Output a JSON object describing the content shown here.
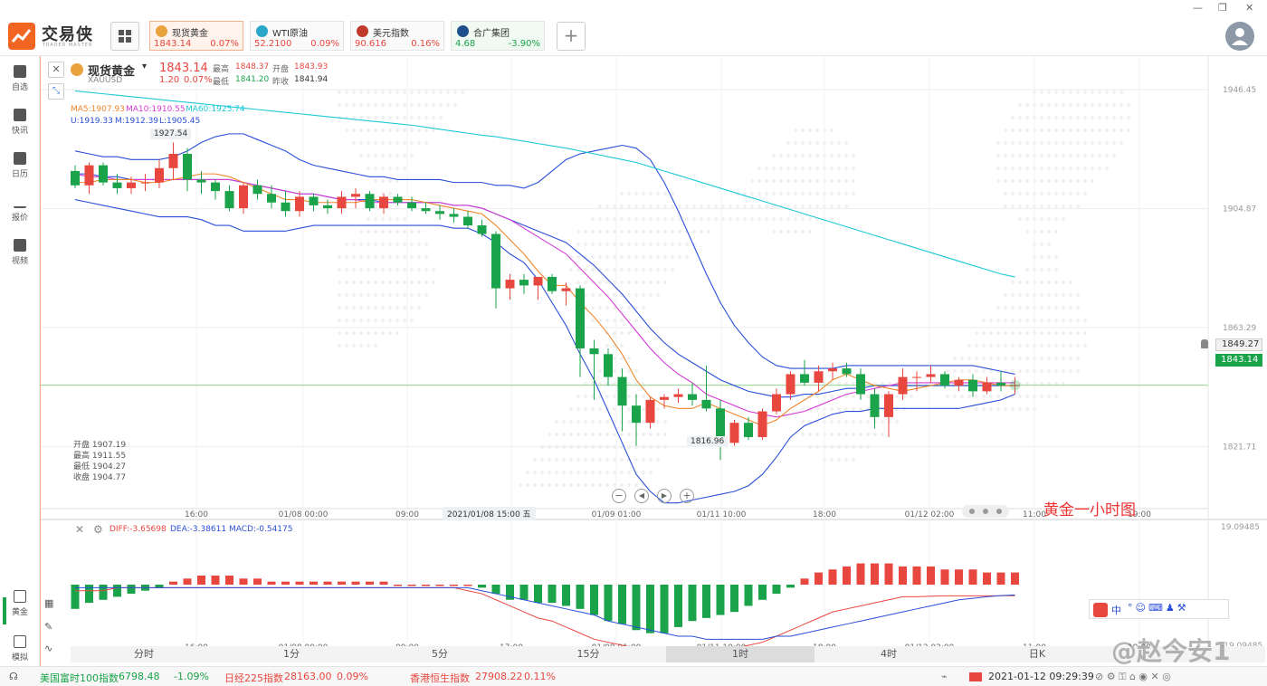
{
  "app": {
    "name": "交易侠",
    "subtitle": "TRADER MASTER"
  },
  "tickers": [
    {
      "name": "现货黄金",
      "price": "1843.14",
      "change": "0.07%",
      "color": "#e8a33c",
      "active": true
    },
    {
      "name": "WTI原油",
      "price": "52.2100",
      "change": "0.09%",
      "color": "#2aa6c8",
      "active": false
    },
    {
      "name": "美元指数",
      "price": "90.616",
      "change": "0.16%",
      "color": "#c0392b",
      "active": false
    },
    {
      "name": "合广集团",
      "price": "4.68",
      "change": "-3.90%",
      "color": "#1f4f8c",
      "active": false
    }
  ],
  "sidebar": [
    {
      "label": "自选"
    },
    {
      "label": "快讯"
    },
    {
      "label": "日历"
    },
    {
      "label": "报价"
    },
    {
      "label": "视频"
    }
  ],
  "sidebar_bottom": [
    {
      "label": "黄金"
    },
    {
      "label": "模拟"
    }
  ],
  "symbol": {
    "name": "现货黄金",
    "code": "XAUUSD",
    "price": "1843.14",
    "change": "1.20",
    "change_pct": "0.07%",
    "high_label": "最高",
    "high": "1848.37",
    "open_label": "开盘",
    "open": "1843.93",
    "low_label": "最低",
    "low": "1841.20",
    "prev_label": "昨收",
    "prev": "1841.94"
  },
  "ma": {
    "ma5": "MA5:1907.93",
    "ma10": "MA10:1910.55",
    "ma60": "MA60:1925.74"
  },
  "boll": {
    "u": "U:1919.33",
    "m": "M:1912.39",
    "l": "L:1905.45"
  },
  "ohlc_box": [
    "开盘 1907.19",
    "最高 1911.55",
    "最低 1904.27",
    "收盘 1904.77"
  ],
  "macd": {
    "diff": "DIFF:-3.65698",
    "dea": "DEA:-3.38611",
    "macd": "MACD:-0.54175"
  },
  "annotation": "黄金一小时图",
  "crosshair_time": "2021/01/08 15:00 五",
  "labels": {
    "peak": "1927.54",
    "trough": "1816.96",
    "alert": "1849.27",
    "last": "1843.14"
  },
  "timeframes": [
    "分时",
    "1分",
    "5分",
    "15分",
    "1时",
    "4时",
    "日K"
  ],
  "active_timeframe": "1时",
  "statusbar": {
    "items": [
      {
        "name": "美国富时100指数",
        "price": "6798.48",
        "change": "-1.09%",
        "dir": "down"
      },
      {
        "name": "日经225指数",
        "price": "28163.00",
        "change": "0.09%",
        "dir": "up"
      },
      {
        "name": "香港恒生指数",
        "price": "27908.22",
        "change": "0.11%",
        "dir": "up"
      }
    ],
    "datetime": "2021-01-12 09:29:39"
  },
  "watermark": "@赵今安1",
  "ime_label": "中",
  "chart_data": {
    "type": "candlestick",
    "price_axis": [
      "1946.45",
      "1904.87",
      "1863.29",
      "1821.71"
    ],
    "price_range": [
      1800,
      1955
    ],
    "macd_axis": [
      "19.09485",
      "-19.09485"
    ],
    "macd_range": [
      -19.09485,
      19.09485
    ],
    "time_axis": [
      "16:00",
      "01/08 00:00",
      "09:00",
      "17:00",
      "01/09 01:00",
      "01/11 10:00",
      "18:00",
      "01/12 02:00",
      "11:00",
      "19:00"
    ],
    "candles": [
      [
        1918,
        1920,
        1912,
        1913
      ],
      [
        1913,
        1921,
        1910,
        1920
      ],
      [
        1920,
        1921,
        1913,
        1914
      ],
      [
        1914,
        1917,
        1910,
        1912
      ],
      [
        1912,
        1916,
        1910,
        1914
      ],
      [
        1914,
        1917,
        1911,
        1914
      ],
      [
        1914,
        1922,
        1912,
        1919
      ],
      [
        1919,
        1928,
        1915,
        1924
      ],
      [
        1924,
        1926,
        1911,
        1915
      ],
      [
        1915,
        1918,
        1910,
        1914
      ],
      [
        1914,
        1915,
        1908,
        1911
      ],
      [
        1911,
        1913,
        1904,
        1905
      ],
      [
        1905,
        1914,
        1903,
        1913
      ],
      [
        1913,
        1915,
        1908,
        1910
      ],
      [
        1910,
        1913,
        1905,
        1907
      ],
      [
        1907,
        1911,
        1902,
        1904
      ],
      [
        1904,
        1911,
        1902,
        1909
      ],
      [
        1909,
        1910,
        1904,
        1906
      ],
      [
        1906,
        1908,
        1903,
        1905
      ],
      [
        1905,
        1911,
        1903,
        1909
      ],
      [
        1909,
        1912,
        1905,
        1910
      ],
      [
        1910,
        1911,
        1904,
        1905
      ],
      [
        1905,
        1910,
        1903,
        1909
      ],
      [
        1909,
        1910,
        1906,
        1907
      ],
      [
        1907,
        1909,
        1904,
        1905
      ],
      [
        1905,
        1907,
        1903,
        1904
      ],
      [
        1904,
        1906,
        1901,
        1903
      ],
      [
        1903,
        1905,
        1900,
        1902
      ],
      [
        1902,
        1904,
        1898,
        1899
      ],
      [
        1899,
        1901,
        1895,
        1896
      ],
      [
        1896,
        1897,
        1870,
        1877
      ],
      [
        1877,
        1882,
        1873,
        1880
      ],
      [
        1880,
        1882,
        1875,
        1878
      ],
      [
        1878,
        1881,
        1873,
        1881
      ],
      [
        1881,
        1882,
        1875,
        1876
      ],
      [
        1876,
        1879,
        1871,
        1877
      ],
      [
        1877,
        1878,
        1846,
        1856
      ],
      [
        1856,
        1859,
        1838,
        1854
      ],
      [
        1854,
        1856,
        1843,
        1846
      ],
      [
        1846,
        1849,
        1827,
        1836
      ],
      [
        1836,
        1840,
        1822,
        1830
      ],
      [
        1830,
        1839,
        1828,
        1838
      ],
      [
        1838,
        1840,
        1835,
        1839
      ],
      [
        1839,
        1842,
        1837,
        1840
      ],
      [
        1840,
        1844,
        1836,
        1838
      ],
      [
        1838,
        1850,
        1834,
        1835
      ],
      [
        1835,
        1838,
        1817,
        1823
      ],
      [
        1823,
        1831,
        1822,
        1830
      ],
      [
        1830,
        1832,
        1824,
        1825
      ],
      [
        1825,
        1835,
        1824,
        1834
      ],
      [
        1834,
        1842,
        1833,
        1840
      ],
      [
        1840,
        1848,
        1838,
        1847
      ],
      [
        1847,
        1852,
        1843,
        1844
      ],
      [
        1844,
        1850,
        1841,
        1848
      ],
      [
        1848,
        1851,
        1845,
        1849
      ],
      [
        1849,
        1851,
        1846,
        1847
      ],
      [
        1847,
        1849,
        1838,
        1840
      ],
      [
        1840,
        1842,
        1828,
        1832
      ],
      [
        1832,
        1841,
        1825,
        1840
      ],
      [
        1840,
        1849,
        1838,
        1846
      ],
      [
        1846,
        1848,
        1841,
        1846
      ],
      [
        1846,
        1850,
        1844,
        1847
      ],
      [
        1847,
        1848,
        1842,
        1843
      ],
      [
        1843,
        1846,
        1841,
        1845
      ],
      [
        1845,
        1847,
        1839,
        1841
      ],
      [
        1841,
        1846,
        1840,
        1844
      ],
      [
        1844,
        1848,
        1841,
        1843
      ],
      [
        1843,
        1846,
        1840,
        1843.14
      ]
    ],
    "ma5": [
      1914,
      1914,
      1915,
      1915,
      1915,
      1914,
      1914,
      1915,
      1916,
      1917,
      1917,
      1916,
      1914,
      1912,
      1910,
      1908,
      1908,
      1907,
      1907,
      1907,
      1907,
      1908,
      1908,
      1908,
      1908,
      1907,
      1906,
      1905,
      1904,
      1903,
      1899,
      1894,
      1889,
      1883,
      1878,
      1878,
      1872,
      1867,
      1861,
      1854,
      1845,
      1839,
      1836,
      1835,
      1835,
      1837,
      1835,
      1833,
      1831,
      1829,
      1831,
      1835,
      1838,
      1841,
      1845,
      1847,
      1845,
      1843,
      1842,
      1841,
      1842,
      1843,
      1844,
      1845,
      1845,
      1844,
      1843,
      1843
    ],
    "ma10": [
      1917,
      1916,
      1916,
      1915,
      1915,
      1915,
      1915,
      1915,
      1915,
      1915,
      1915,
      1915,
      1914,
      1913,
      1912,
      1911,
      1910,
      1910,
      1909,
      1908,
      1908,
      1907,
      1907,
      1907,
      1907,
      1907,
      1907,
      1906,
      1906,
      1905,
      1903,
      1901,
      1898,
      1895,
      1892,
      1889,
      1884,
      1879,
      1874,
      1868,
      1862,
      1856,
      1851,
      1847,
      1844,
      1840,
      1838,
      1836,
      1834,
      1833,
      1832,
      1833,
      1834,
      1836,
      1838,
      1840,
      1841,
      1842,
      1843,
      1844,
      1844,
      1844,
      1844,
      1844,
      1844,
      1844,
      1844,
      1844
    ],
    "ma60": [
      1946,
      1945.5,
      1945,
      1944.5,
      1944,
      1943.5,
      1943,
      1942.5,
      1942,
      1941.5,
      1941,
      1940.5,
      1940,
      1939.5,
      1939,
      1938.5,
      1938,
      1937.5,
      1937,
      1936.5,
      1936,
      1935.5,
      1935,
      1934.5,
      1934,
      1933.3,
      1932.6,
      1931.9,
      1931.2,
      1930.5,
      1930,
      1929.2,
      1928.4,
      1927.6,
      1926.8,
      1926,
      1925,
      1924,
      1923,
      1922,
      1921,
      1919.5,
      1918,
      1916.5,
      1915,
      1913.5,
      1912,
      1910.5,
      1909,
      1907.5,
      1906,
      1904.5,
      1903,
      1901.5,
      1900,
      1898.5,
      1897,
      1895.5,
      1894,
      1892.5,
      1891,
      1889.5,
      1888,
      1886.5,
      1885,
      1883.5,
      1882,
      1881
    ],
    "boll_upper": [
      1925,
      1924,
      1923,
      1923,
      1922,
      1922,
      1922,
      1923,
      1925,
      1928,
      1930,
      1931,
      1931,
      1929,
      1927,
      1925,
      1922,
      1920,
      1919,
      1918,
      1917,
      1916,
      1916,
      1915,
      1915,
      1915,
      1915,
      1914,
      1914,
      1914,
      1913,
      1913,
      1912,
      1914,
      1918,
      1922,
      1924,
      1925,
      1926,
      1927,
      1926,
      1922,
      1914,
      1904,
      1893,
      1882,
      1872,
      1864,
      1858,
      1853,
      1850,
      1849,
      1849,
      1849,
      1849,
      1850,
      1850,
      1850,
      1850,
      1850,
      1850,
      1850,
      1850,
      1850,
      1850,
      1849,
      1848,
      1847
    ],
    "boll_mid": [
      1917,
      1917,
      1916,
      1916,
      1915,
      1915,
      1915,
      1915,
      1915,
      1915,
      1915,
      1915,
      1914,
      1913,
      1912,
      1911,
      1910,
      1910,
      1909,
      1908,
      1908,
      1908,
      1907,
      1907,
      1907,
      1907,
      1907,
      1906,
      1906,
      1905,
      1903,
      1901,
      1899,
      1897,
      1895,
      1893,
      1889,
      1885,
      1880,
      1875,
      1869,
      1863,
      1858,
      1854,
      1851,
      1848,
      1845,
      1843,
      1841,
      1840,
      1839,
      1839,
      1840,
      1840,
      1841,
      1842,
      1842,
      1843,
      1843,
      1843,
      1843,
      1843,
      1843,
      1843,
      1843,
      1843,
      1843,
      1843
    ],
    "boll_lower": [
      1908,
      1907,
      1906,
      1905,
      1904,
      1903,
      1902,
      1902,
      1902,
      1901,
      1899,
      1899,
      1897,
      1897,
      1897,
      1897,
      1898,
      1899,
      1899,
      1899,
      1899,
      1899,
      1899,
      1899,
      1899,
      1899,
      1899,
      1898,
      1898,
      1896,
      1893,
      1889,
      1886,
      1880,
      1872,
      1864,
      1854,
      1845,
      1834,
      1823,
      1812,
      1806,
      1802,
      1802,
      1803,
      1804,
      1805,
      1806,
      1808,
      1812,
      1818,
      1825,
      1829,
      1831,
      1833,
      1834,
      1834,
      1835,
      1835,
      1835,
      1835,
      1835,
      1835,
      1835,
      1836,
      1837,
      1838,
      1840
    ],
    "macd_hist": [
      -8,
      -6,
      -5,
      -4,
      -3,
      -2,
      -1,
      1,
      2,
      3,
      3,
      3,
      2,
      2,
      1,
      1,
      1,
      1,
      1,
      1,
      1,
      1,
      1,
      0,
      0,
      0,
      0,
      0,
      0,
      -1,
      -3,
      -5,
      -5,
      -6,
      -6,
      -7,
      -8,
      -10,
      -12,
      -13,
      -15,
      -16,
      -16,
      -14,
      -12,
      -11,
      -10,
      -9,
      -7,
      -5,
      -3,
      -1,
      2,
      4,
      5,
      6,
      7,
      7,
      7,
      6,
      6,
      6,
      5,
      5,
      5,
      4,
      4,
      4
    ],
    "macd_diff": [
      -2,
      -2,
      -2,
      -1,
      -1,
      -1,
      -1,
      -1,
      -1,
      -1,
      -1,
      -1,
      -1,
      -1,
      -1,
      -1,
      -1,
      -1,
      -1,
      -1,
      -1,
      -1,
      -1,
      -1,
      -1,
      -1,
      -1,
      -1,
      -2,
      -3,
      -5,
      -7,
      -9,
      -11,
      -12,
      -14,
      -16,
      -18,
      -19,
      -20,
      -21,
      -21,
      -21,
      -21,
      -21,
      -21,
      -21,
      -21,
      -20,
      -19,
      -17,
      -15,
      -13,
      -11,
      -9,
      -8,
      -7,
      -6,
      -5,
      -4,
      -4,
      -3.8,
      -3.7,
      -3.7,
      -3.7,
      -3.7,
      -3.66,
      -3.66
    ],
    "macd_dea": [
      -1,
      -1,
      -1,
      -1,
      -1,
      -1,
      -1,
      -1,
      -1,
      -1,
      -1,
      -1,
      -1,
      -1,
      -1,
      -1,
      -1,
      -1,
      -1,
      -1,
      -1,
      -1,
      -1,
      -1,
      -1,
      -1,
      -1,
      -1,
      -1,
      -2,
      -3,
      -4,
      -5,
      -6,
      -7,
      -8,
      -9,
      -10,
      -12,
      -13,
      -14,
      -15,
      -16,
      -17,
      -17,
      -18,
      -18,
      -18,
      -18,
      -18,
      -17,
      -17,
      -16,
      -15,
      -14,
      -13,
      -12,
      -11,
      -10,
      -9,
      -8,
      -7,
      -6,
      -5,
      -4.5,
      -4,
      -3.6,
      -3.39
    ]
  }
}
